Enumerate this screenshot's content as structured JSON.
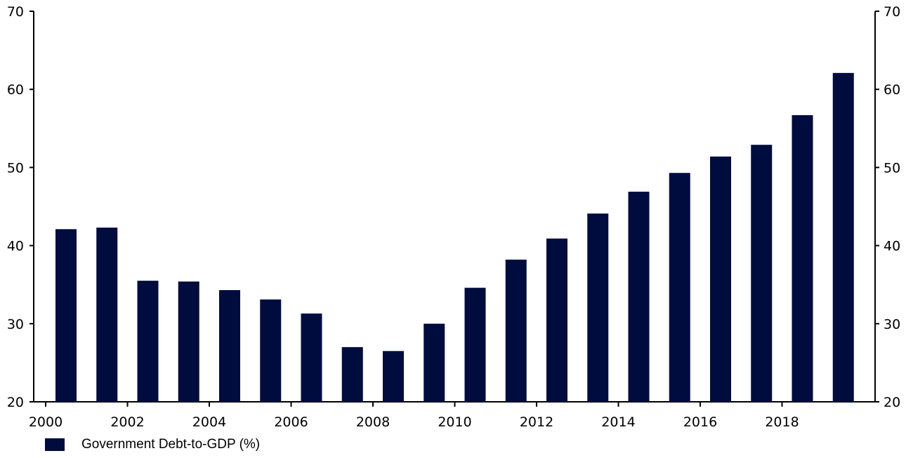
{
  "colors": {
    "bar": "#000c3d",
    "axis": "#000000"
  },
  "chart_data": {
    "type": "bar",
    "title": "",
    "xlabel": "",
    "ylabel": "",
    "categories": [
      "2000",
      "2001",
      "2002",
      "2003",
      "2004",
      "2005",
      "2006",
      "2007",
      "2008",
      "2009",
      "2010",
      "2011",
      "2012",
      "2013",
      "2014",
      "2015",
      "2016",
      "2017",
      "2018",
      "2019"
    ],
    "series": [
      {
        "name": "Government Debt-to-GDP (%)",
        "values": [
          42.1,
          42.3,
          35.5,
          35.4,
          34.3,
          33.1,
          31.3,
          27.0,
          26.5,
          30.0,
          34.6,
          38.2,
          40.9,
          44.1,
          46.9,
          49.3,
          51.4,
          52.9,
          56.7,
          62.1
        ]
      }
    ],
    "ylim": [
      20,
      70
    ],
    "y_ticks": [
      "20",
      "30",
      "40",
      "50",
      "60",
      "70"
    ],
    "x_tick_labels": [
      "2000",
      "2002",
      "2004",
      "2006",
      "2008",
      "2010",
      "2012",
      "2014",
      "2016",
      "2018"
    ],
    "grid": false,
    "legend_position": "bottom-left",
    "secondary_y_axis": true
  }
}
